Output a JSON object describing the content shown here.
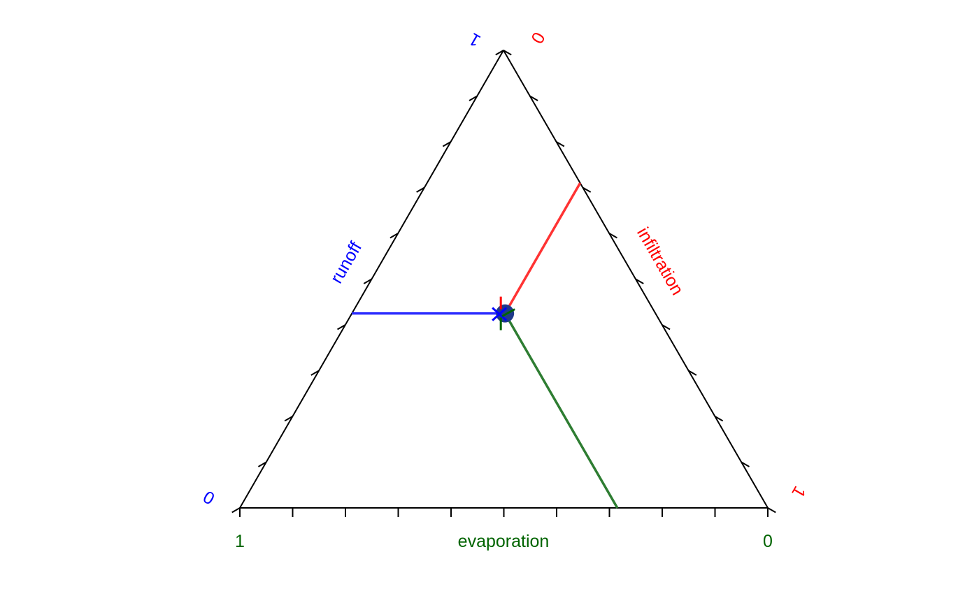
{
  "chart_data": {
    "type": "scatter",
    "subtype": "ternary",
    "grid": false,
    "ticks_per_axis": 11,
    "colors": {
      "frame": "#000000",
      "runoff": "#0000ff",
      "infiltration": "#ff0000",
      "evaporation": "#006400",
      "runoff_line": "#2a2aff",
      "infiltration_line": "#ff3333",
      "evaporation_line": "#2e7d32",
      "point_fill": "#1f3a8a"
    },
    "axes": {
      "runoff": {
        "label": "runoff",
        "min_label": "0",
        "max_label": "1"
      },
      "infiltration": {
        "label": "infiltration",
        "min_label": "0",
        "max_label": "1"
      },
      "evaporation": {
        "label": "evaporation",
        "min_label": "0",
        "max_label": "1"
      }
    },
    "point": {
      "evaporation": 0.285,
      "infiltration": 0.29,
      "runoff": 0.425
    }
  }
}
